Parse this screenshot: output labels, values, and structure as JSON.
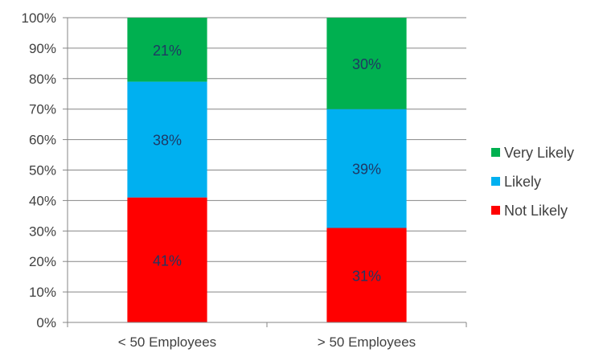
{
  "chart_data": {
    "type": "bar",
    "stacked": true,
    "categories": [
      "< 50 Employees",
      "> 50 Employees"
    ],
    "series": [
      {
        "name": "Not Likely",
        "values": [
          41,
          31
        ],
        "color": "#ff0000"
      },
      {
        "name": "Likely",
        "values": [
          38,
          39
        ],
        "color": "#00b0f0"
      },
      {
        "name": "Very Likely",
        "values": [
          21,
          30
        ],
        "color": "#00b050"
      }
    ],
    "data_labels": [
      [
        "41%",
        "31%"
      ],
      [
        "38%",
        "39%"
      ],
      [
        "21%",
        "30%"
      ]
    ],
    "ylim": [
      0,
      100
    ],
    "yticks": [
      "0%",
      "10%",
      "20%",
      "30%",
      "40%",
      "50%",
      "60%",
      "70%",
      "80%",
      "90%",
      "100%"
    ],
    "grid": true,
    "legend": "right",
    "legend_order": [
      "Very Likely",
      "Likely",
      "Not Likely"
    ],
    "title": "",
    "xlabel": "",
    "ylabel": ""
  }
}
